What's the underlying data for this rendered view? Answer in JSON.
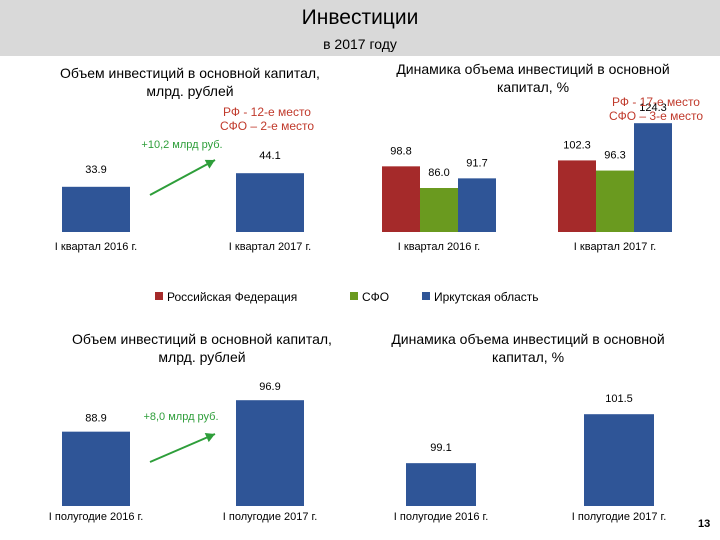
{
  "header": {
    "title": "Инвестиции",
    "subtitle": "в 2017 году"
  },
  "colors": {
    "blue": "#2f5597",
    "red": "#a52a2a",
    "green": "#6a9a1f",
    "rank": "#c0392b",
    "arrow": "#2e9e3a"
  },
  "legend": [
    "Российская Федерация",
    "СФО",
    "Иркутская область"
  ],
  "slide_number": "13",
  "chart_data": [
    {
      "type": "bar",
      "title": [
        "Объем инвестиций в основной капитал,",
        "млрд. рублей"
      ],
      "categories": [
        "I квартал 2016 г.",
        "I квартал 2017 г."
      ],
      "values": [
        33.9,
        44.1
      ],
      "value_labels": [
        "33.9",
        "44.1"
      ],
      "annotation": {
        "growth": "+10,2 млрд руб.",
        "rank": [
          "РФ - 12-е место",
          "СФО – 2-е место"
        ]
      },
      "ylim": [
        0,
        60
      ]
    },
    {
      "type": "bar",
      "title": [
        "Динамика объема инвестиций в основной",
        "капитал, %"
      ],
      "categories": [
        "I квартал 2016 г.",
        "I квартал 2017 г."
      ],
      "series": [
        {
          "name": "Российская Федерация",
          "values": [
            98.8,
            102.3
          ],
          "labels": [
            "98.8",
            "102.3"
          ]
        },
        {
          "name": "СФО",
          "values": [
            86.0,
            96.3
          ],
          "labels": [
            "86.0",
            "96.3"
          ]
        },
        {
          "name": "Иркутская область",
          "values": [
            91.7,
            124.3
          ],
          "labels": [
            "91.7",
            "124.3"
          ]
        }
      ],
      "annotation": {
        "rank": [
          "РФ - 17-е место",
          "СФО – 3-е место"
        ]
      },
      "ylim": [
        60,
        125
      ]
    },
    {
      "type": "bar",
      "title": [
        "Объем инвестиций в основной капитал,",
        "млрд. рублей"
      ],
      "categories": [
        "I полугодие 2016 г.",
        "I полугодие 2017 г."
      ],
      "values": [
        88.9,
        96.9
      ],
      "value_labels": [
        "88.9",
        "96.9"
      ],
      "annotation": {
        "growth": "+8,0 млрд руб."
      },
      "ylim": [
        70,
        100
      ]
    },
    {
      "type": "bar",
      "title": [
        "Динамика объема инвестиций в основной",
        "капитал, %"
      ],
      "categories": [
        "I полугодие 2016 г.",
        "I полугодие 2017 г."
      ],
      "values": [
        99.1,
        101.5
      ],
      "value_labels": [
        "99.1",
        "101.5"
      ],
      "ylim": [
        97,
        102
      ]
    }
  ]
}
